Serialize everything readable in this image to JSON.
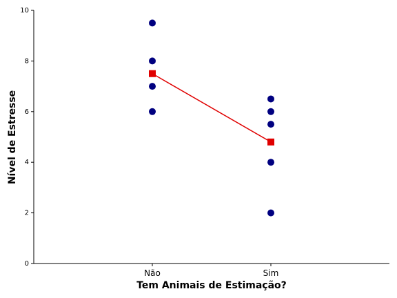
{
  "chart_data": {
    "type": "strip",
    "x_label": "Tem Animais de Estimação?",
    "y_label": "Nível de Estresse",
    "categories": [
      "Não",
      "Sim"
    ],
    "points": [
      [
        9.5,
        8,
        7,
        6
      ],
      [
        6.5,
        6,
        5.5,
        4,
        2
      ]
    ],
    "point_color": "#000080",
    "means": [
      7.5,
      4.8
    ],
    "mean_color": "#e00000",
    "ylim": [
      0,
      10
    ],
    "yticks": [
      0,
      2,
      4,
      6,
      8,
      10
    ]
  }
}
